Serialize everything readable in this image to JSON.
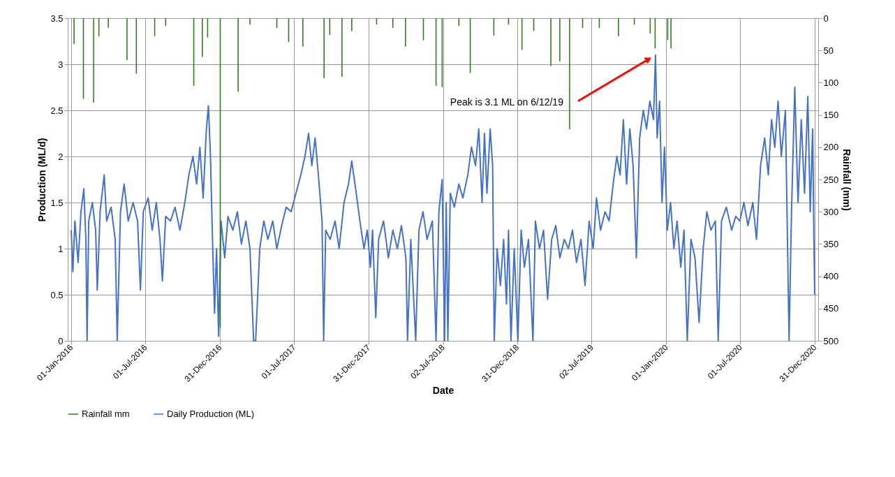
{
  "chart_data": {
    "type": "line",
    "xlabel": "Date",
    "ylabel": "Production (ML/d)",
    "y2label": "Rainfall (mm)",
    "xlim": [
      "2016-01-01",
      "2020-12-31"
    ],
    "xticks": [
      {
        "value": "2016-01-01",
        "label": "01-Jan-2016"
      },
      {
        "value": "2016-07-01",
        "label": "01-Jul-2016"
      },
      {
        "value": "2016-12-31",
        "label": "31-Dec-2016"
      },
      {
        "value": "2017-07-01",
        "label": "01-Jul-2017"
      },
      {
        "value": "2017-12-31",
        "label": "31-Dec-2017"
      },
      {
        "value": "2018-07-02",
        "label": "02-Jul-2018"
      },
      {
        "value": "2018-12-31",
        "label": "31-Dec-2018"
      },
      {
        "value": "2019-07-02",
        "label": "02-Jul-2019"
      },
      {
        "value": "2020-01-01",
        "label": "01-Jan-2020"
      },
      {
        "value": "2020-07-01",
        "label": "01-Jul-2020"
      },
      {
        "value": "2020-12-31",
        "label": "31-Dec-2020"
      }
    ],
    "ylim": [
      0,
      3.5
    ],
    "yticks": [
      0,
      0.5,
      1,
      1.5,
      2,
      2.5,
      3,
      3.5
    ],
    "y2lim": [
      500,
      0
    ],
    "y2ticks": [
      0,
      50,
      100,
      150,
      200,
      250,
      300,
      350,
      400,
      450,
      500
    ],
    "grid": true,
    "legend": "bottom",
    "marker": "none",
    "line_style": "solid",
    "annotations": [
      "Peak is 3.1 ML on 6/12/19"
    ],
    "series": [
      {
        "name": "Rainfall mm",
        "type": "bar",
        "axis": "y2",
        "color": "#2e7d1f",
        "x": [
          "2016-01-08",
          "2016-01-31",
          "2016-02-25",
          "2016-03-09",
          "2016-04-01",
          "2016-05-17",
          "2016-06-09",
          "2016-07-24",
          "2016-08-20",
          "2016-10-28",
          "2016-11-18",
          "2016-12-01",
          "2017-01-01",
          "2017-02-14",
          "2017-03-15",
          "2017-05-20",
          "2017-06-18",
          "2017-07-23",
          "2017-09-13",
          "2017-09-27",
          "2017-10-27",
          "2017-11-20",
          "2018-01-20",
          "2018-03-01",
          "2018-04-01",
          "2018-05-15",
          "2018-06-15",
          "2018-06-30",
          "2018-08-10",
          "2018-09-07",
          "2018-11-04",
          "2018-12-10",
          "2019-01-12",
          "2019-02-10",
          "2019-03-24",
          "2019-04-15",
          "2019-05-09",
          "2019-06-10",
          "2019-07-21",
          "2019-09-06",
          "2019-10-15",
          "2019-11-23",
          "2019-12-05",
          "2020-01-05",
          "2020-01-13"
        ],
        "values": [
          40,
          125,
          131,
          28,
          15,
          65,
          86,
          28,
          12,
          105,
          60,
          30,
          480,
          114,
          10,
          15,
          37,
          44,
          93,
          26,
          91,
          20,
          10,
          15,
          44,
          34,
          105,
          107,
          12,
          85,
          27,
          10,
          49,
          20,
          74,
          67,
          172,
          15,
          15,
          28,
          10,
          24,
          47,
          34,
          47
        ]
      },
      {
        "name": "Daily Production (ML)",
        "color": "#4472c4",
        "x": [
          "2016-01-01",
          "2016-01-05",
          "2016-01-10",
          "2016-01-18",
          "2016-01-25",
          "2016-02-01",
          "2016-02-06",
          "2016-02-09",
          "2016-02-13",
          "2016-02-22",
          "2016-03-01",
          "2016-03-05",
          "2016-03-12",
          "2016-03-22",
          "2016-03-28",
          "2016-04-08",
          "2016-04-18",
          "2016-04-23",
          "2016-05-01",
          "2016-05-10",
          "2016-05-20",
          "2016-06-01",
          "2016-06-12",
          "2016-06-19",
          "2016-06-26",
          "2016-07-08",
          "2016-07-18",
          "2016-07-28",
          "2016-08-06",
          "2016-08-12",
          "2016-08-20",
          "2016-09-01",
          "2016-09-12",
          "2016-09-24",
          "2016-10-06",
          "2016-10-16",
          "2016-10-26",
          "2016-11-04",
          "2016-11-12",
          "2016-11-20",
          "2016-11-28",
          "2016-12-03",
          "2016-12-08",
          "2016-12-13",
          "2016-12-18",
          "2016-12-23",
          "2016-12-28",
          "2017-01-03",
          "2017-01-12",
          "2017-01-20",
          "2017-02-01",
          "2017-02-12",
          "2017-02-22",
          "2017-03-05",
          "2017-03-15",
          "2017-03-24",
          "2017-03-29",
          "2017-04-08",
          "2017-04-18",
          "2017-04-28",
          "2017-05-10",
          "2017-05-20",
          "2017-06-01",
          "2017-06-12",
          "2017-06-24",
          "2017-07-06",
          "2017-07-18",
          "2017-07-28",
          "2017-08-06",
          "2017-08-14",
          "2017-08-22",
          "2017-08-30",
          "2017-09-08",
          "2017-09-12",
          "2017-09-17",
          "2017-09-28",
          "2017-10-10",
          "2017-10-20",
          "2017-11-01",
          "2017-11-12",
          "2017-11-20",
          "2017-12-01",
          "2017-12-10",
          "2017-12-20",
          "2017-12-28",
          "2018-01-05",
          "2018-01-10",
          "2018-01-18",
          "2018-01-25",
          "2018-02-06",
          "2018-02-18",
          "2018-03-01",
          "2018-03-12",
          "2018-03-22",
          "2018-04-02",
          "2018-04-06",
          "2018-04-14",
          "2018-04-26",
          "2018-05-04",
          "2018-05-14",
          "2018-05-24",
          "2018-06-06",
          "2018-06-15",
          "2018-06-22",
          "2018-06-30",
          "2018-07-06",
          "2018-07-10",
          "2018-07-14",
          "2018-07-20",
          "2018-07-30",
          "2018-08-10",
          "2018-08-20",
          "2018-09-01",
          "2018-09-10",
          "2018-09-20",
          "2018-09-28",
          "2018-10-06",
          "2018-10-12",
          "2018-10-18",
          "2018-10-26",
          "2018-11-01",
          "2018-11-05",
          "2018-11-12",
          "2018-11-20",
          "2018-11-28",
          "2018-12-05",
          "2018-12-10",
          "2018-12-16",
          "2018-12-24",
          "2019-01-02",
          "2019-01-10",
          "2019-01-18",
          "2019-01-28",
          "2019-02-08",
          "2019-02-14",
          "2019-02-24",
          "2019-03-06",
          "2019-03-16",
          "2019-03-26",
          "2019-04-05",
          "2019-04-15",
          "2019-04-26",
          "2019-05-06",
          "2019-05-16",
          "2019-05-26",
          "2019-06-06",
          "2019-06-16",
          "2019-06-26",
          "2019-07-06",
          "2019-07-14",
          "2019-07-24",
          "2019-08-04",
          "2019-08-14",
          "2019-08-24",
          "2019-09-02",
          "2019-09-10",
          "2019-09-18",
          "2019-09-26",
          "2019-10-04",
          "2019-10-12",
          "2019-10-20",
          "2019-10-28",
          "2019-11-06",
          "2019-11-14",
          "2019-11-22",
          "2019-12-01",
          "2019-12-06",
          "2019-12-10",
          "2019-12-16",
          "2019-12-22",
          "2019-12-28",
          "2020-01-04",
          "2020-01-12",
          "2020-01-20",
          "2020-01-28",
          "2020-02-06",
          "2020-02-14",
          "2020-02-22",
          "2020-03-02",
          "2020-03-12",
          "2020-03-22",
          "2020-04-01",
          "2020-04-10",
          "2020-04-20",
          "2020-05-01",
          "2020-05-08",
          "2020-05-16",
          "2020-05-28",
          "2020-06-10",
          "2020-06-20",
          "2020-06-30",
          "2020-07-10",
          "2020-07-20",
          "2020-08-01",
          "2020-08-10",
          "2020-08-20",
          "2020-08-30",
          "2020-09-08",
          "2020-09-16",
          "2020-09-24",
          "2020-10-02",
          "2020-10-10",
          "2020-10-20",
          "2020-10-29",
          "2020-11-04",
          "2020-11-12",
          "2020-11-20",
          "2020-11-28",
          "2020-12-06",
          "2020-12-14",
          "2020-12-20",
          "2020-12-26",
          "2020-12-29",
          "2020-12-31"
        ],
        "values": [
          1.2,
          0.75,
          1.3,
          0.85,
          1.4,
          1.65,
          1.1,
          0.0,
          1.3,
          1.5,
          1.2,
          0.55,
          1.4,
          1.8,
          1.3,
          1.45,
          1.1,
          0.0,
          1.4,
          1.7,
          1.3,
          1.5,
          1.3,
          0.55,
          1.4,
          1.55,
          1.2,
          1.5,
          1.1,
          0.65,
          1.35,
          1.3,
          1.45,
          1.2,
          1.5,
          1.8,
          2.0,
          1.7,
          2.1,
          1.55,
          2.3,
          2.55,
          2.0,
          1.1,
          0.3,
          1.0,
          0.05,
          1.3,
          0.9,
          1.35,
          1.2,
          1.4,
          1.05,
          1.3,
          1.0,
          0.0,
          0.0,
          1.0,
          1.3,
          1.1,
          1.3,
          1.0,
          1.25,
          1.45,
          1.4,
          1.6,
          1.8,
          2.0,
          2.25,
          1.9,
          2.2,
          1.8,
          1.3,
          0.0,
          1.2,
          1.1,
          1.3,
          1.0,
          1.5,
          1.7,
          1.95,
          1.6,
          1.3,
          1.0,
          1.2,
          0.8,
          1.2,
          0.25,
          1.1,
          1.3,
          0.9,
          1.2,
          1.0,
          1.25,
          0.9,
          0.0,
          1.1,
          0.0,
          1.2,
          1.4,
          1.1,
          1.3,
          0.0,
          1.4,
          1.75,
          0.0,
          1.5,
          0.0,
          1.6,
          1.45,
          1.7,
          1.55,
          1.8,
          2.1,
          1.9,
          2.3,
          1.5,
          2.25,
          1.6,
          2.3,
          1.9,
          0.0,
          1.0,
          0.6,
          1.1,
          0.4,
          1.2,
          0.0,
          1.0,
          0.0,
          1.2,
          0.8,
          1.1,
          0.0,
          1.3,
          1.0,
          1.2,
          0.45,
          1.1,
          1.25,
          0.9,
          1.1,
          1.0,
          1.2,
          0.85,
          1.1,
          0.6,
          1.3,
          1.0,
          1.55,
          1.2,
          1.4,
          1.3,
          1.7,
          2.0,
          1.8,
          2.4,
          1.7,
          2.3,
          1.9,
          0.9,
          2.2,
          2.5,
          2.3,
          2.6,
          2.4,
          3.1,
          2.2,
          2.6,
          1.5,
          2.1,
          1.2,
          1.5,
          1.0,
          1.3,
          0.8,
          1.2,
          0.0,
          1.1,
          0.9,
          0.2,
          1.0,
          1.4,
          1.2,
          1.3,
          0.0,
          1.3,
          1.45,
          1.2,
          1.35,
          1.3,
          1.5,
          1.25,
          1.5,
          1.1,
          1.9,
          2.2,
          1.8,
          2.4,
          2.1,
          2.6,
          2.0,
          2.5,
          0.0,
          1.4,
          2.75,
          1.5,
          2.4,
          1.6,
          2.65,
          1.4,
          2.3,
          1.1,
          0.5
        ]
      }
    ]
  }
}
